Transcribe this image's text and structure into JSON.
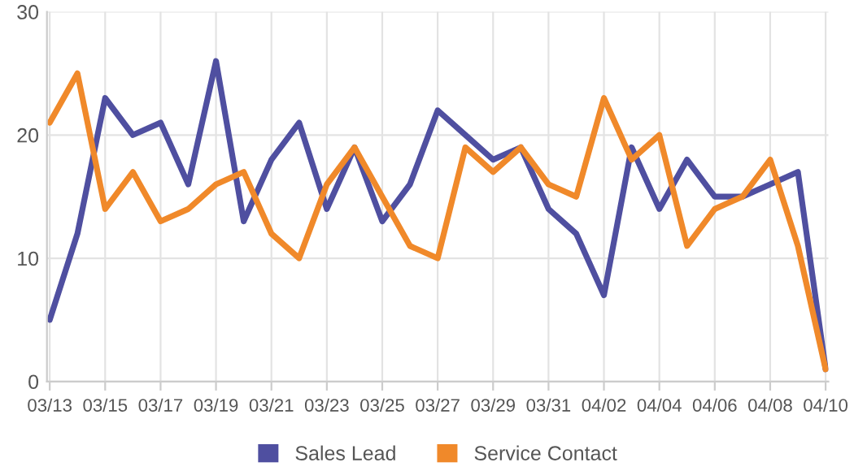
{
  "chart_data": {
    "type": "line",
    "categories": [
      "03/13",
      null,
      "03/15",
      null,
      "03/17",
      null,
      "03/19",
      null,
      "03/21",
      null,
      "03/23",
      null,
      "03/25",
      null,
      "03/27",
      null,
      "03/29",
      null,
      "03/31",
      null,
      "04/02",
      null,
      "04/04",
      null,
      "04/06",
      null,
      "04/08",
      null,
      "04/10"
    ],
    "series": [
      {
        "name": "Sales Lead",
        "color": "#4f4fa0",
        "values": [
          5,
          12,
          23,
          20,
          21,
          16,
          26,
          13,
          18,
          21,
          14,
          19,
          13,
          16,
          22,
          20,
          18,
          19,
          14,
          12,
          7,
          19,
          14,
          18,
          15,
          15,
          16,
          17,
          1
        ]
      },
      {
        "name": "Service Contact",
        "color": "#f0892a",
        "values": [
          21,
          25,
          14,
          17,
          13,
          14,
          16,
          17,
          12,
          10,
          16,
          19,
          15,
          11,
          10,
          19,
          17,
          19,
          16,
          15,
          23,
          18,
          20,
          11,
          14,
          15,
          18,
          11,
          1
        ]
      }
    ],
    "ylim": [
      0,
      30
    ],
    "yticks": [
      0,
      10,
      20,
      30
    ],
    "grid": true,
    "legend": "bottom",
    "marker": "none",
    "line_style": "solid"
  }
}
